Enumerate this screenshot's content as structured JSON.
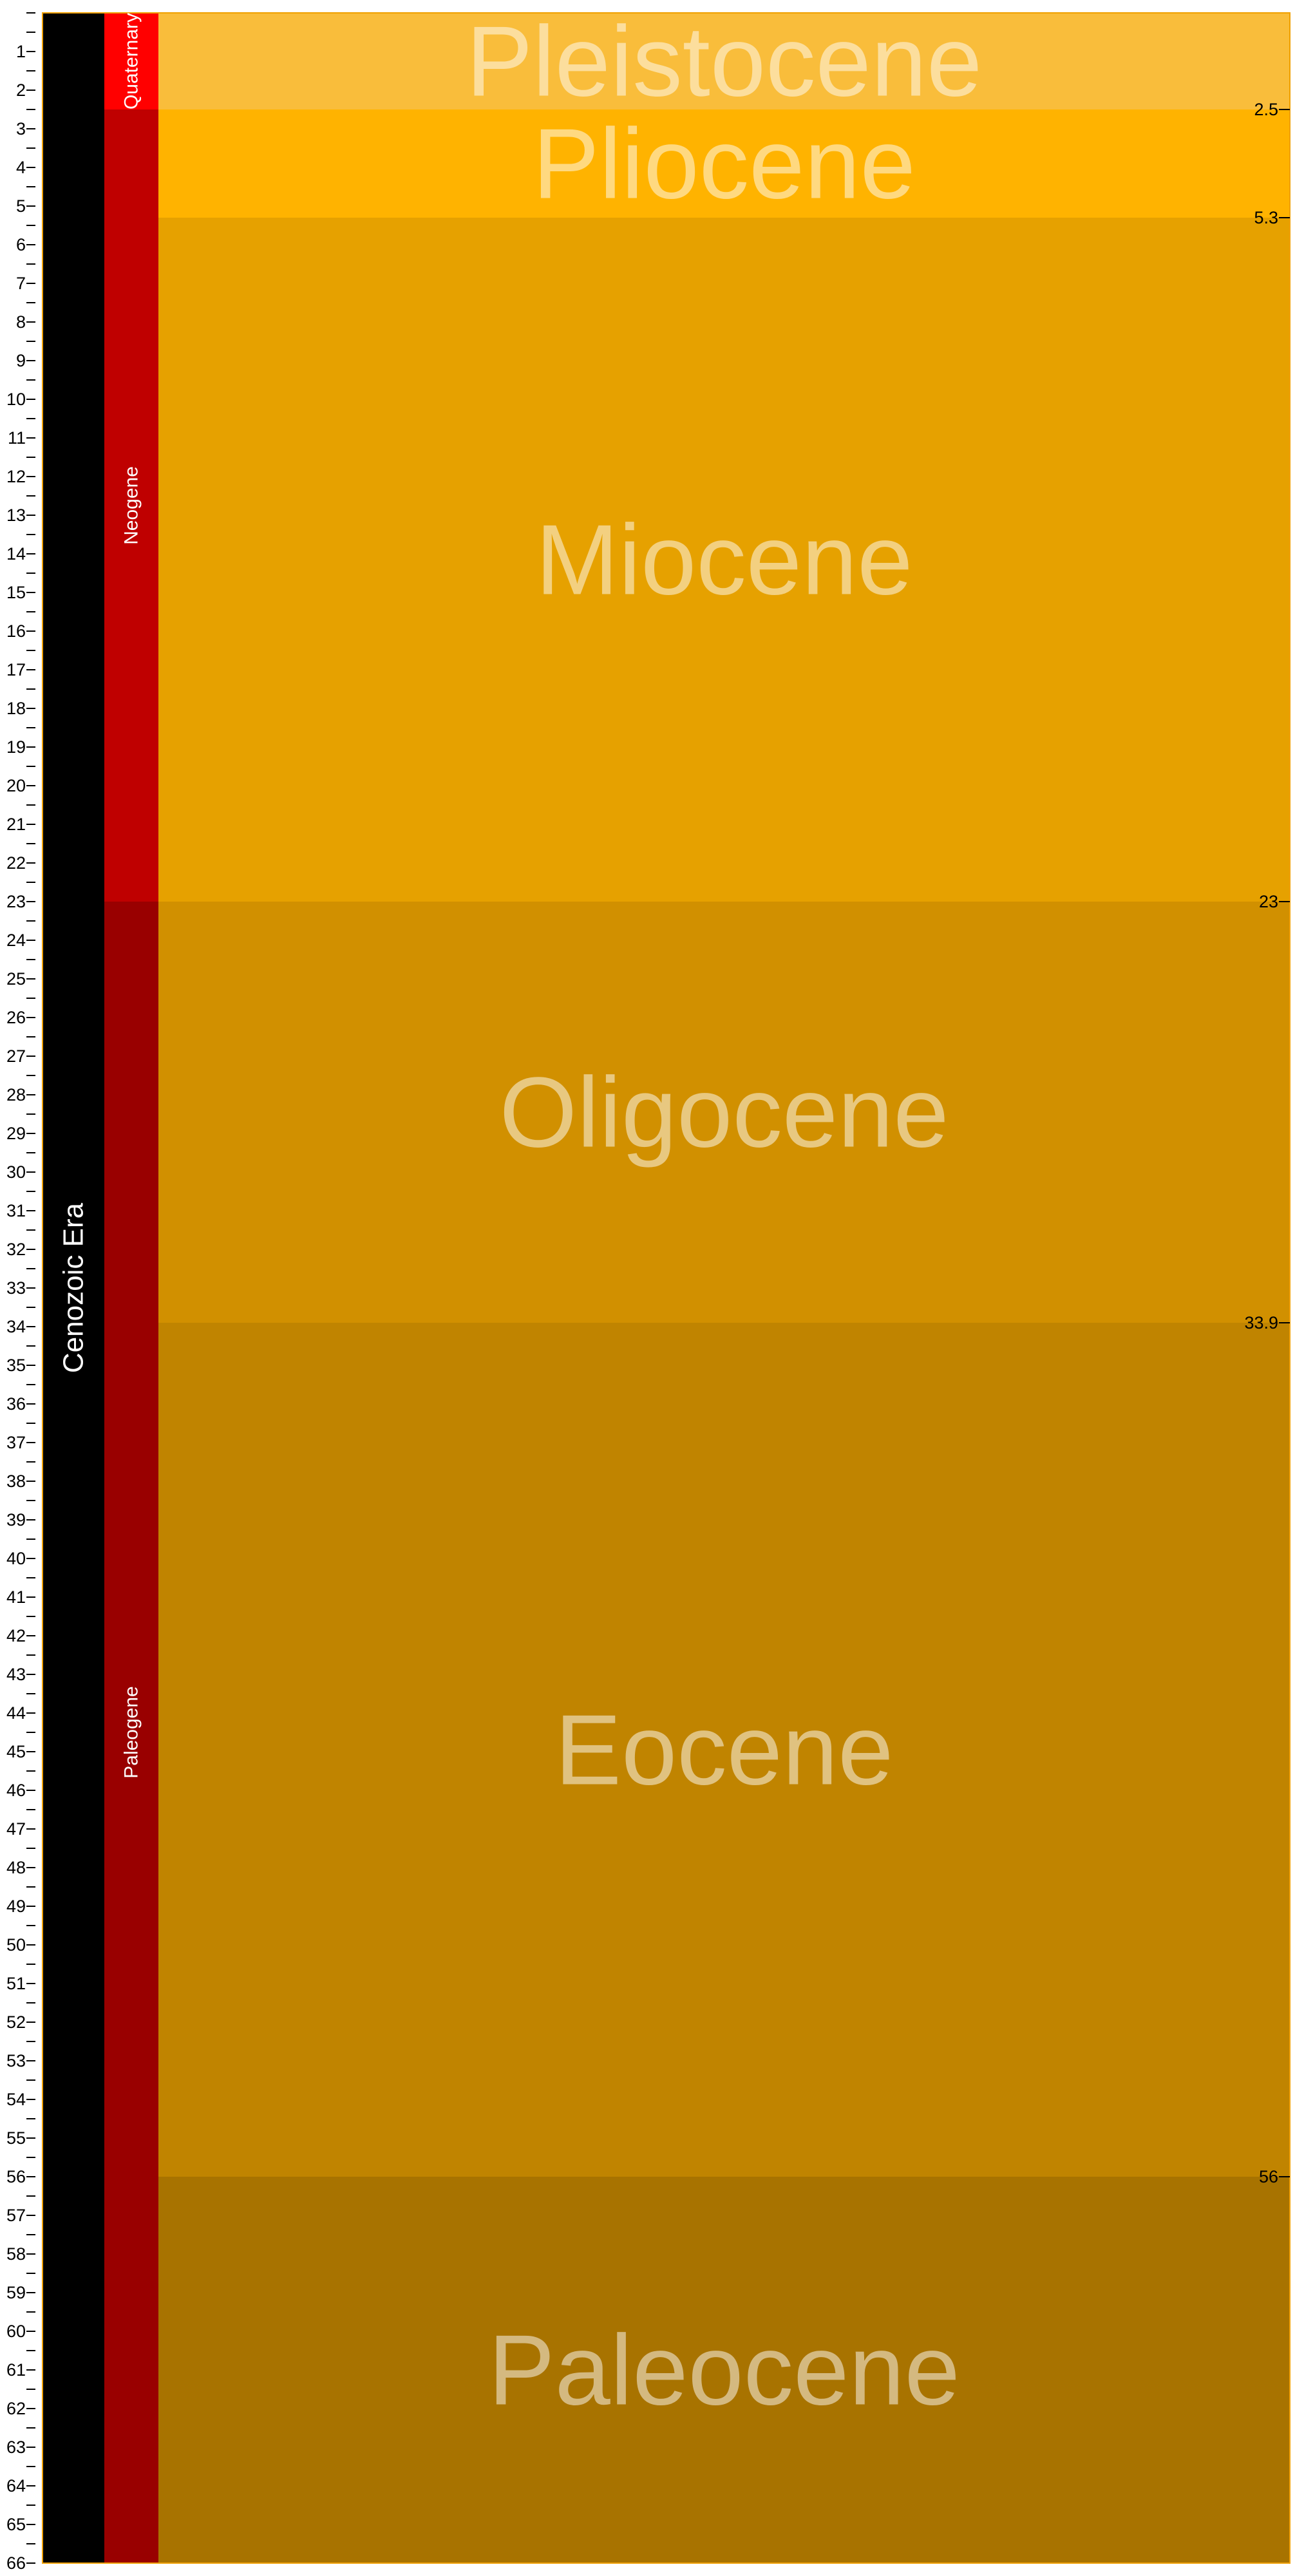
{
  "chart_data": {
    "type": "table",
    "ylim": [
      0,
      66
    ],
    "y_direction": "increasing-downward",
    "left_axis": {
      "tick_labels": [
        "1",
        "2",
        "3",
        "4",
        "5",
        "6",
        "7",
        "8",
        "9",
        "10",
        "11",
        "12",
        "13",
        "14",
        "15",
        "16",
        "17",
        "18",
        "19",
        "20",
        "21",
        "22",
        "23",
        "24",
        "25",
        "26",
        "27",
        "28",
        "29",
        "30",
        "31",
        "32",
        "33",
        "34",
        "35",
        "36",
        "37",
        "38",
        "39",
        "40",
        "41",
        "42",
        "43",
        "44",
        "45",
        "46",
        "47",
        "48",
        "49",
        "50",
        "51",
        "52",
        "53",
        "54",
        "55",
        "56",
        "57",
        "58",
        "59",
        "60",
        "61",
        "62",
        "63",
        "64",
        "65",
        "66"
      ],
      "minor_tick_step": 0.5
    },
    "right_axis": {
      "tick_values": [
        2.5,
        5.3,
        23,
        33.9,
        56
      ],
      "tick_labels": [
        "2.5",
        "5.3",
        "23",
        "33.9",
        "56"
      ]
    },
    "eras": [
      {
        "name": "Cenozoic Era",
        "start": 0,
        "end": 66,
        "color": "#000000"
      }
    ],
    "periods": [
      {
        "name": "Quaternary",
        "start": 0,
        "end": 2.5,
        "color": "#FF0000"
      },
      {
        "name": "Neogene",
        "start": 2.5,
        "end": 23,
        "color": "#BF0000"
      },
      {
        "name": "Paleogene",
        "start": 23,
        "end": 66,
        "color": "#990000"
      }
    ],
    "epochs": [
      {
        "name": "Pleistocene",
        "start": 0,
        "end": 2.5,
        "color": "#F9BD3B"
      },
      {
        "name": "Pliocene",
        "start": 2.5,
        "end": 5.3,
        "color": "#FFB300"
      },
      {
        "name": "Miocene",
        "start": 5.3,
        "end": 23,
        "color": "#E6A100"
      },
      {
        "name": "Oligocene",
        "start": 23,
        "end": 33.9,
        "color": "#D19000"
      },
      {
        "name": "Eocene",
        "start": 33.9,
        "end": 56,
        "color": "#C08400"
      },
      {
        "name": "Paleocene",
        "start": 56,
        "end": 66,
        "color": "#A87300"
      }
    ],
    "border_color": "#F0A000",
    "epoch_label_color": "rgba(255,255,255,0.5)",
    "grid": false
  }
}
